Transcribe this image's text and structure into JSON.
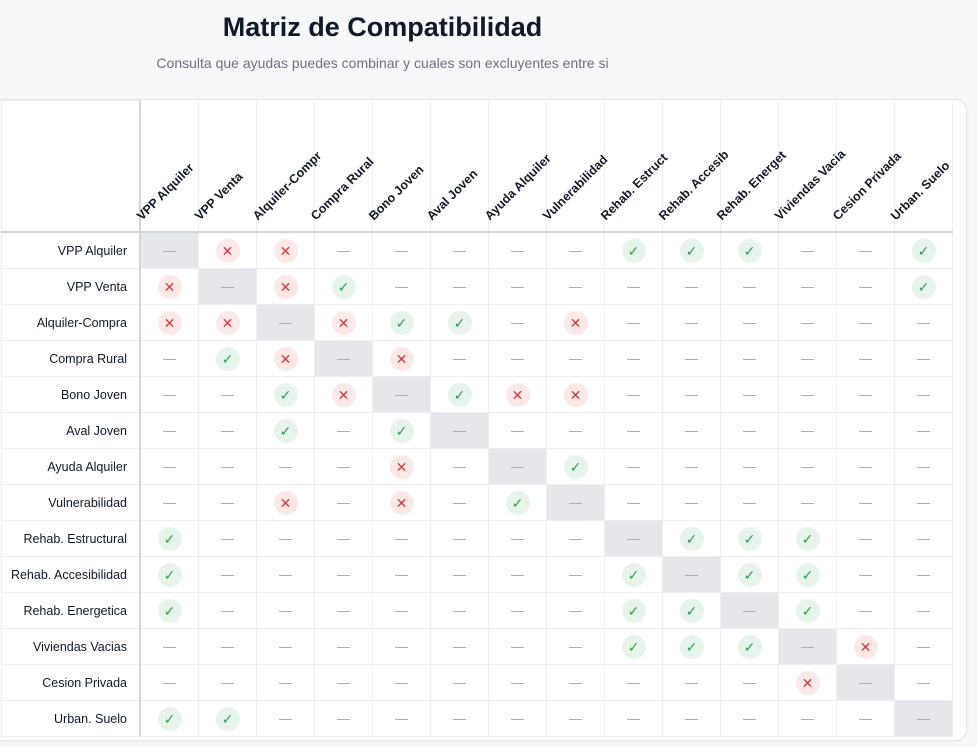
{
  "header": {
    "title": "Matriz de Compatibilidad",
    "subtitle": "Consulta que ayudas puedes combinar y cuales son excluyentes entre si"
  },
  "symbols": {
    "compatible": "✓",
    "excluyente": "✕",
    "sin_relacion": "—"
  },
  "colors": {
    "compatible": "#2f9e57",
    "excluyente": "#d63b3b",
    "diagonal": "#e5e7eb"
  },
  "columns": [
    "VPP Alquiler",
    "VPP Venta",
    "Alquiler-Compr",
    "Compra Rural",
    "Bono Joven",
    "Aval Joven",
    "Ayuda Alquiler",
    "Vulnerabilidad",
    "Rehab. Estruct",
    "Rehab. Accesib",
    "Rehab. Energet",
    "Viviendas Vacia",
    "Cesion Privada",
    "Urban. Suelo"
  ],
  "rows": [
    {
      "label": "VPP Alquiler",
      "cells": [
        "d",
        "x",
        "x",
        "-",
        "-",
        "-",
        "-",
        "-",
        "y",
        "y",
        "y",
        "-",
        "-",
        "y"
      ]
    },
    {
      "label": "VPP Venta",
      "cells": [
        "x",
        "d",
        "x",
        "y",
        "-",
        "-",
        "-",
        "-",
        "-",
        "-",
        "-",
        "-",
        "-",
        "y"
      ]
    },
    {
      "label": "Alquiler-Compra",
      "cells": [
        "x",
        "x",
        "d",
        "x",
        "y",
        "y",
        "-",
        "x",
        "-",
        "-",
        "-",
        "-",
        "-",
        "-"
      ]
    },
    {
      "label": "Compra Rural",
      "cells": [
        "-",
        "y",
        "x",
        "d",
        "x",
        "-",
        "-",
        "-",
        "-",
        "-",
        "-",
        "-",
        "-",
        "-"
      ]
    },
    {
      "label": "Bono Joven",
      "cells": [
        "-",
        "-",
        "y",
        "x",
        "d",
        "y",
        "x",
        "x",
        "-",
        "-",
        "-",
        "-",
        "-",
        "-"
      ]
    },
    {
      "label": "Aval Joven",
      "cells": [
        "-",
        "-",
        "y",
        "-",
        "y",
        "d",
        "-",
        "-",
        "-",
        "-",
        "-",
        "-",
        "-",
        "-"
      ]
    },
    {
      "label": "Ayuda Alquiler",
      "cells": [
        "-",
        "-",
        "-",
        "-",
        "x",
        "-",
        "d",
        "y",
        "-",
        "-",
        "-",
        "-",
        "-",
        "-"
      ]
    },
    {
      "label": "Vulnerabilidad",
      "cells": [
        "-",
        "-",
        "x",
        "-",
        "x",
        "-",
        "y",
        "d",
        "-",
        "-",
        "-",
        "-",
        "-",
        "-"
      ]
    },
    {
      "label": "Rehab. Estructural",
      "cells": [
        "y",
        "-",
        "-",
        "-",
        "-",
        "-",
        "-",
        "-",
        "d",
        "y",
        "y",
        "y",
        "-",
        "-"
      ]
    },
    {
      "label": "Rehab. Accesibilidad",
      "cells": [
        "y",
        "-",
        "-",
        "-",
        "-",
        "-",
        "-",
        "-",
        "y",
        "d",
        "y",
        "y",
        "-",
        "-"
      ]
    },
    {
      "label": "Rehab. Energetica",
      "cells": [
        "y",
        "-",
        "-",
        "-",
        "-",
        "-",
        "-",
        "-",
        "y",
        "y",
        "d",
        "y",
        "-",
        "-"
      ]
    },
    {
      "label": "Viviendas Vacias",
      "cells": [
        "-",
        "-",
        "-",
        "-",
        "-",
        "-",
        "-",
        "-",
        "y",
        "y",
        "y",
        "d",
        "x",
        "-"
      ]
    },
    {
      "label": "Cesion Privada",
      "cells": [
        "-",
        "-",
        "-",
        "-",
        "-",
        "-",
        "-",
        "-",
        "-",
        "-",
        "-",
        "x",
        "d",
        "-"
      ]
    },
    {
      "label": "Urban. Suelo",
      "cells": [
        "y",
        "y",
        "-",
        "-",
        "-",
        "-",
        "-",
        "-",
        "-",
        "-",
        "-",
        "-",
        "-",
        "d"
      ]
    }
  ]
}
